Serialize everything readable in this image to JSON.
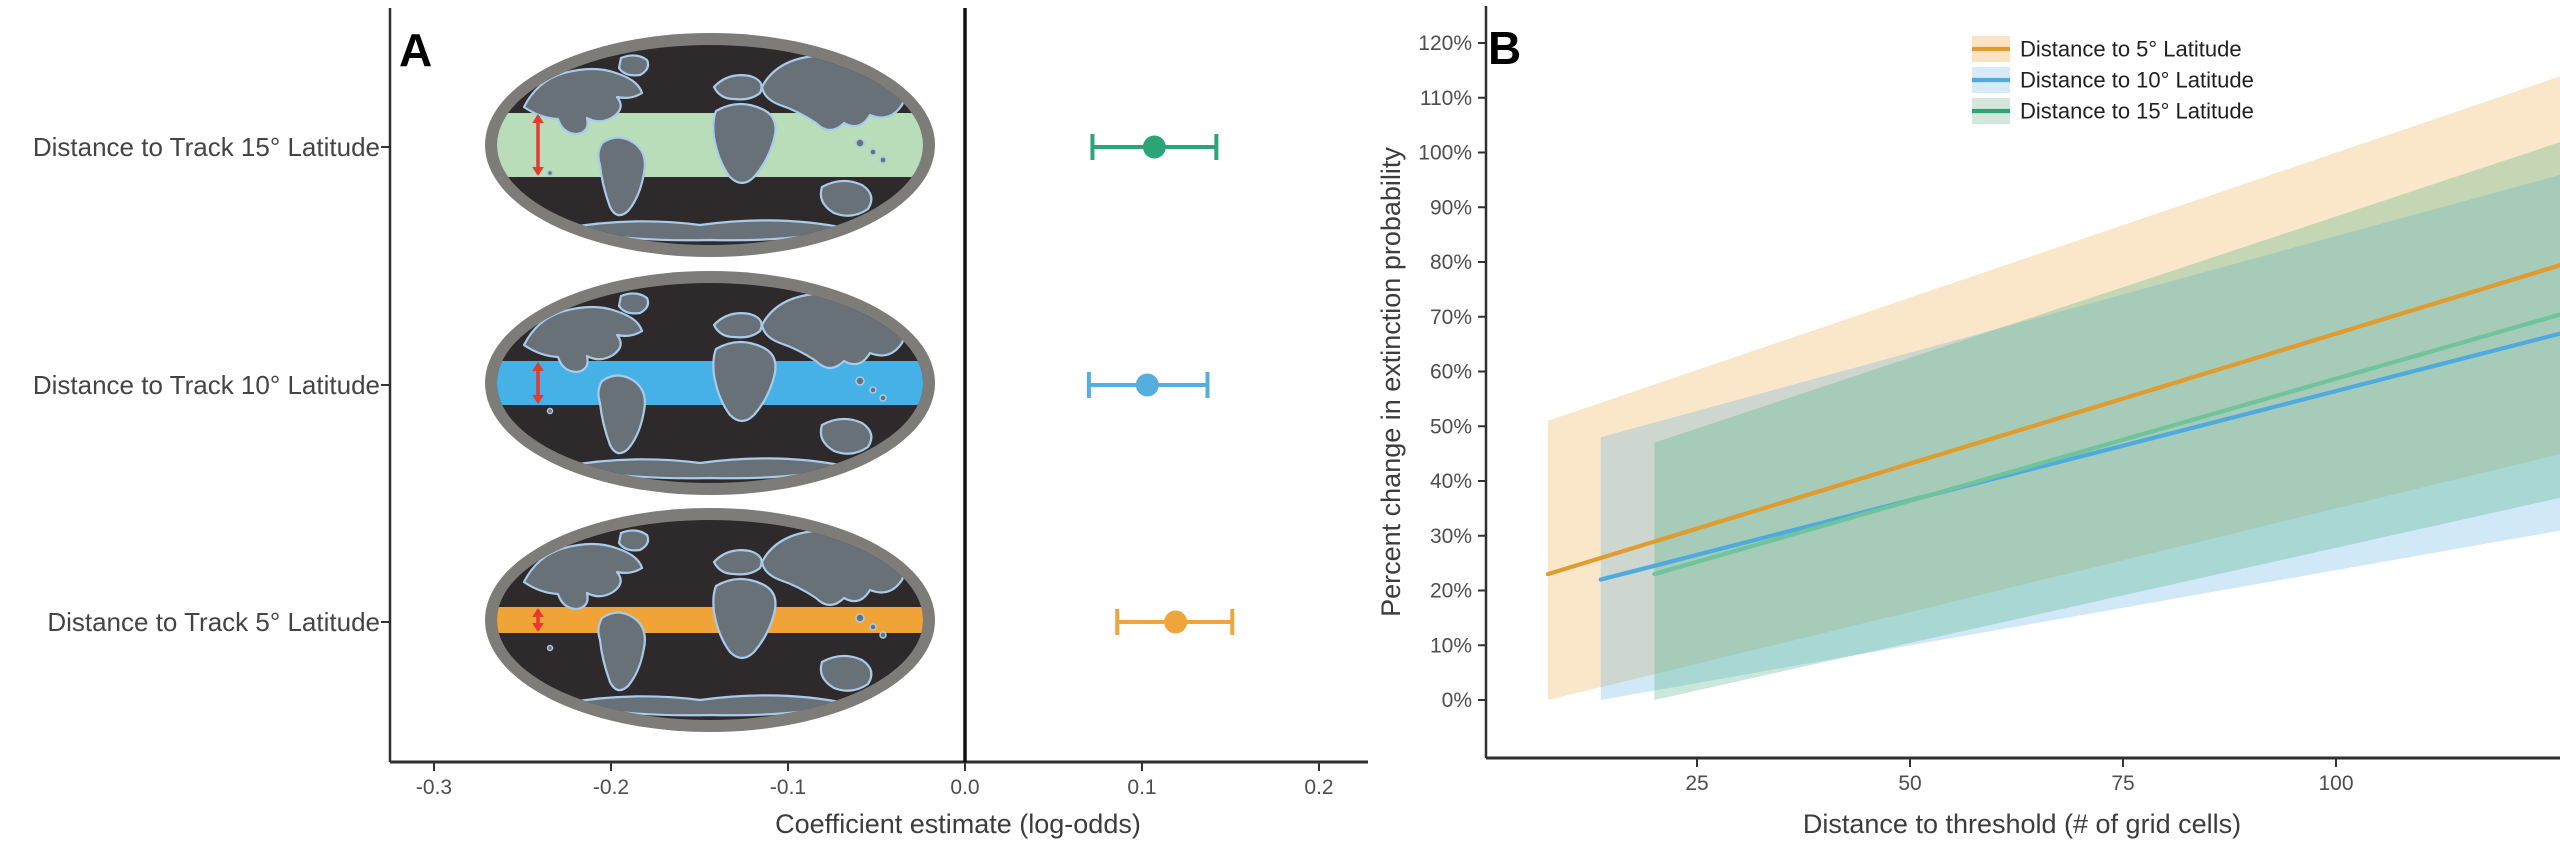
{
  "figure": {
    "background": "#ffffff",
    "panel_a_label": "A",
    "panel_b_label": "B"
  },
  "chart_data": [
    {
      "type": "scatter",
      "subtype": "forest-plot",
      "panel_label": "A",
      "xlabel": "Coefficient estimate (log-odds)",
      "xlim": [
        -0.325,
        0.228
      ],
      "ref_line_x": 0,
      "grid": "off",
      "xticks": [
        {
          "value": -0.3,
          "label": "-0.3"
        },
        {
          "value": -0.2,
          "label": "-0.2"
        },
        {
          "value": -0.1,
          "label": "-0.1"
        },
        {
          "value": 0.0,
          "label": "0.0"
        },
        {
          "value": 0.1,
          "label": "0.1"
        },
        {
          "value": 0.2,
          "label": "0.2"
        }
      ],
      "rows": [
        {
          "label": "Distance to Track 15° Latitude",
          "estimate": 0.107,
          "ci_low": 0.072,
          "ci_high": 0.142,
          "color": "#2BA578",
          "band_color": "#B9DDB9",
          "band_degrees": 15
        },
        {
          "label": "Distance to Track 10° Latitude",
          "estimate": 0.103,
          "ci_low": 0.07,
          "ci_high": 0.137,
          "color": "#56AEDF",
          "band_color": "#45B1E6",
          "band_degrees": 10
        },
        {
          "label": "Distance to Track 5° Latitude",
          "estimate": 0.119,
          "ci_low": 0.086,
          "ci_high": 0.151,
          "color": "#EDA53C",
          "band_color": "#F0A437",
          "band_degrees": 5
        }
      ],
      "map_style": {
        "ring_color": "#7E7C79",
        "ocean_color": "#2E2A2B",
        "land_color": "#687078",
        "coast_color": "#A9CBE9",
        "arrow_color": "#E6392F"
      }
    },
    {
      "type": "line",
      "panel_label": "B",
      "xlabel": "Distance to threshold (# of grid cells)",
      "ylabel": "Percent change in extinction probability",
      "xlim": [
        0,
        126.5
      ],
      "ylim_pct": [
        -10,
        127
      ],
      "grid": "off",
      "xticks": [
        25,
        50,
        75,
        100
      ],
      "yticks_pct": [
        0,
        10,
        20,
        30,
        40,
        50,
        60,
        70,
        80,
        90,
        100,
        110,
        120
      ],
      "legend_position": "top-right",
      "series": [
        {
          "name": "Distance to 5° Latitude",
          "line_color": "#E09C2F",
          "legend_line_color": "#E09C2F",
          "ribbon_color": "#EDA53C",
          "ribbon_opacity": 0.27,
          "swatch_fill": "#FAE3C4",
          "x": [
            7.5,
            126.5
          ],
          "y_pct": [
            23,
            79.5
          ],
          "ribbon_low_pct": [
            0,
            45
          ],
          "ribbon_high_pct": [
            51,
            114
          ]
        },
        {
          "name": "Distance to 10° Latitude",
          "line_color": "#4FABDE",
          "legend_line_color": "#4FABDE",
          "ribbon_color": "#56AEDF",
          "ribbon_opacity": 0.27,
          "swatch_fill": "#D7EAF7",
          "x": [
            13.7,
            126.5
          ],
          "y_pct": [
            22,
            67
          ],
          "ribbon_low_pct": [
            0,
            31
          ],
          "ribbon_high_pct": [
            48,
            96
          ]
        },
        {
          "name": "Distance to 15° Latitude",
          "line_color": "#6FC49C",
          "legend_line_color": "#2EA377",
          "ribbon_color": "#4CAE85",
          "ribbon_opacity": 0.3,
          "swatch_fill": "#D3E7DC",
          "x": [
            20,
            126.5
          ],
          "y_pct": [
            23,
            70.5
          ],
          "ribbon_low_pct": [
            0,
            37
          ],
          "ribbon_high_pct": [
            47,
            102
          ]
        }
      ]
    }
  ]
}
